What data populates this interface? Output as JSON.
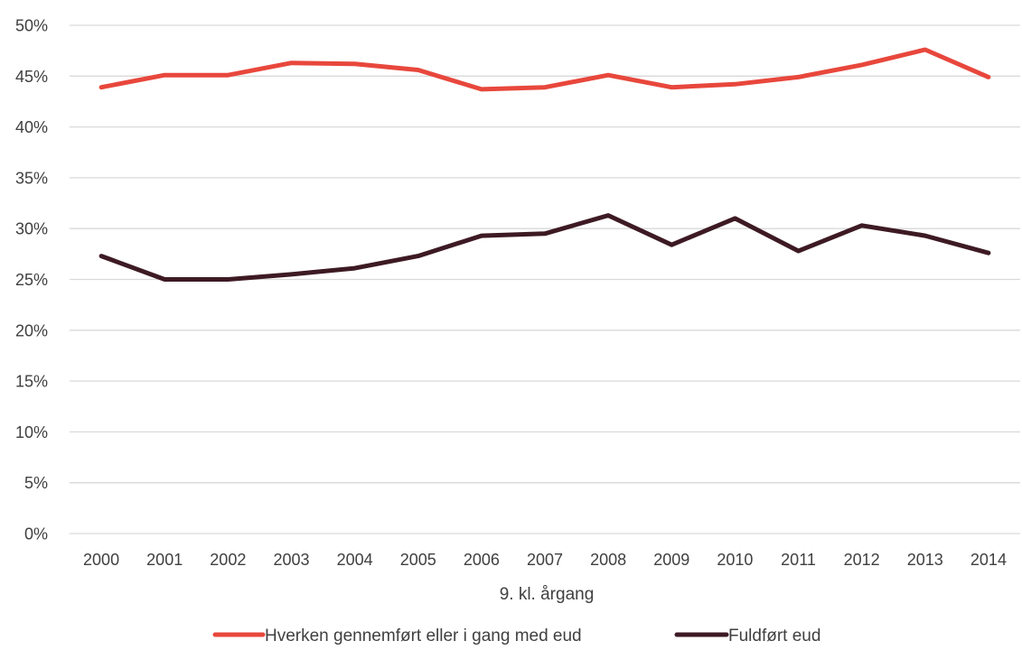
{
  "chart_data": {
    "type": "line",
    "xlabel": "9. kl. årgang",
    "ylabel": "",
    "ylim": [
      0,
      50
    ],
    "y_tick_labels": [
      "0%",
      "5%",
      "10%",
      "15%",
      "20%",
      "25%",
      "30%",
      "35%",
      "40%",
      "45%",
      "50%"
    ],
    "grid": true,
    "legend_position": "bottom",
    "categories": [
      "2000",
      "2001",
      "2002",
      "2003",
      "2004",
      "2005",
      "2006",
      "2007",
      "2008",
      "2009",
      "2010",
      "2011",
      "2012",
      "2013",
      "2014"
    ],
    "series": [
      {
        "name": "Hverken gennemført eller i gang med eud",
        "color": "#e8473c",
        "values": [
          43.9,
          45.1,
          45.1,
          46.3,
          46.2,
          45.6,
          43.7,
          43.9,
          45.1,
          43.9,
          44.2,
          44.9,
          46.1,
          47.6,
          44.9
        ]
      },
      {
        "name": "Fuldført eud",
        "color": "#3d1a24",
        "values": [
          27.3,
          25.0,
          25.0,
          25.5,
          26.1,
          27.3,
          29.3,
          29.5,
          31.3,
          28.4,
          31.0,
          27.8,
          30.3,
          29.3,
          27.6
        ]
      }
    ],
    "gridline_color": "#d9d9d9"
  }
}
